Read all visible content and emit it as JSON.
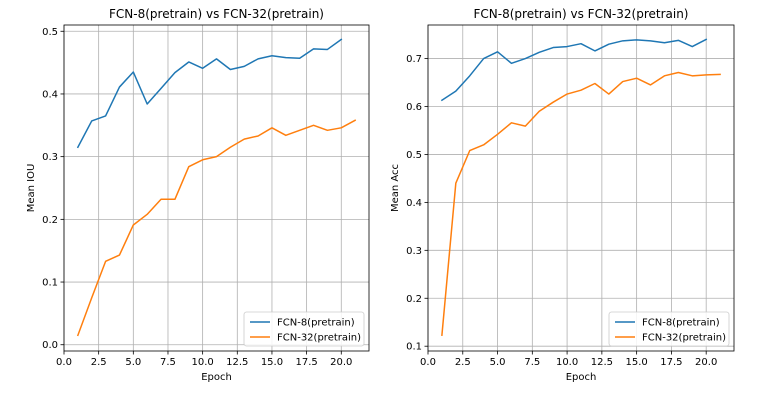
{
  "chart_data": [
    {
      "type": "line",
      "title": "FCN-8(pretrain) vs FCN-32(pretrain)",
      "xlabel": "Epoch",
      "ylabel": "Mean IOU",
      "xlim": [
        0,
        22
      ],
      "ylim": [
        -0.01,
        0.51
      ],
      "xticks": [
        0,
        2.5,
        5,
        7.5,
        10,
        12.5,
        15,
        17.5,
        20
      ],
      "xtick_labels": [
        "0.0",
        "2.5",
        "5.0",
        "7.5",
        "10.0",
        "12.5",
        "15.0",
        "17.5",
        "20.0"
      ],
      "yticks": [
        0,
        0.1,
        0.2,
        0.3,
        0.4,
        0.5
      ],
      "ytick_labels": [
        "0.0",
        "0.1",
        "0.2",
        "0.3",
        "0.4",
        "0.5"
      ],
      "grid": true,
      "legend_position": "lower-right",
      "series": [
        {
          "name": "FCN-8(pretrain)",
          "color": "#1f77b4",
          "x": [
            1,
            2,
            3,
            4,
            5,
            6,
            7,
            8,
            9,
            10,
            11,
            12,
            13,
            14,
            15,
            16,
            17,
            18,
            19,
            20
          ],
          "y": [
            0.315,
            0.357,
            0.365,
            0.411,
            0.435,
            0.384,
            0.409,
            0.434,
            0.451,
            0.441,
            0.456,
            0.439,
            0.444,
            0.456,
            0.461,
            0.458,
            0.457,
            0.472,
            0.471,
            0.487
          ]
        },
        {
          "name": "FCN-32(pretrain)",
          "color": "#ff7f0e",
          "x": [
            1,
            2,
            3,
            4,
            5,
            6,
            7,
            8,
            9,
            10,
            11,
            12,
            13,
            14,
            15,
            16,
            17,
            18,
            19,
            20,
            21
          ],
          "y": [
            0.015,
            0.075,
            0.133,
            0.143,
            0.191,
            0.208,
            0.232,
            0.232,
            0.284,
            0.295,
            0.3,
            0.315,
            0.328,
            0.333,
            0.346,
            0.334,
            0.342,
            0.35,
            0.342,
            0.346,
            0.358
          ]
        }
      ]
    },
    {
      "type": "line",
      "title": "FCN-8(pretrain) vs FCN-32(pretrain)",
      "xlabel": "Epoch",
      "ylabel": "Mean Acc",
      "xlim": [
        0,
        22
      ],
      "ylim": [
        0.09,
        0.77
      ],
      "xticks": [
        0,
        2.5,
        5,
        7.5,
        10,
        12.5,
        15,
        17.5,
        20
      ],
      "xtick_labels": [
        "0.0",
        "2.5",
        "5.0",
        "7.5",
        "10.0",
        "12.5",
        "15.0",
        "17.5",
        "20.0"
      ],
      "yticks": [
        0.1,
        0.2,
        0.3,
        0.4,
        0.5,
        0.6,
        0.7
      ],
      "ytick_labels": [
        "0.1",
        "0.2",
        "0.3",
        "0.4",
        "0.5",
        "0.6",
        "0.7"
      ],
      "grid": true,
      "legend_position": "lower-right",
      "series": [
        {
          "name": "FCN-8(pretrain)",
          "color": "#1f77b4",
          "x": [
            1,
            2,
            3,
            4,
            5,
            6,
            7,
            8,
            9,
            10,
            11,
            12,
            13,
            14,
            15,
            16,
            17,
            18,
            19,
            20
          ],
          "y": [
            0.613,
            0.632,
            0.664,
            0.7,
            0.714,
            0.69,
            0.7,
            0.713,
            0.723,
            0.725,
            0.731,
            0.716,
            0.73,
            0.737,
            0.739,
            0.737,
            0.733,
            0.738,
            0.725,
            0.74
          ]
        },
        {
          "name": "FCN-32(pretrain)",
          "color": "#ff7f0e",
          "x": [
            1,
            2,
            3,
            4,
            5,
            6,
            7,
            8,
            9,
            10,
            11,
            12,
            13,
            14,
            15,
            16,
            17,
            18,
            19,
            20,
            21
          ],
          "y": [
            0.123,
            0.44,
            0.508,
            0.52,
            0.542,
            0.566,
            0.559,
            0.59,
            0.609,
            0.626,
            0.634,
            0.648,
            0.626,
            0.652,
            0.659,
            0.645,
            0.664,
            0.671,
            0.664,
            0.666,
            0.667
          ]
        }
      ]
    }
  ]
}
